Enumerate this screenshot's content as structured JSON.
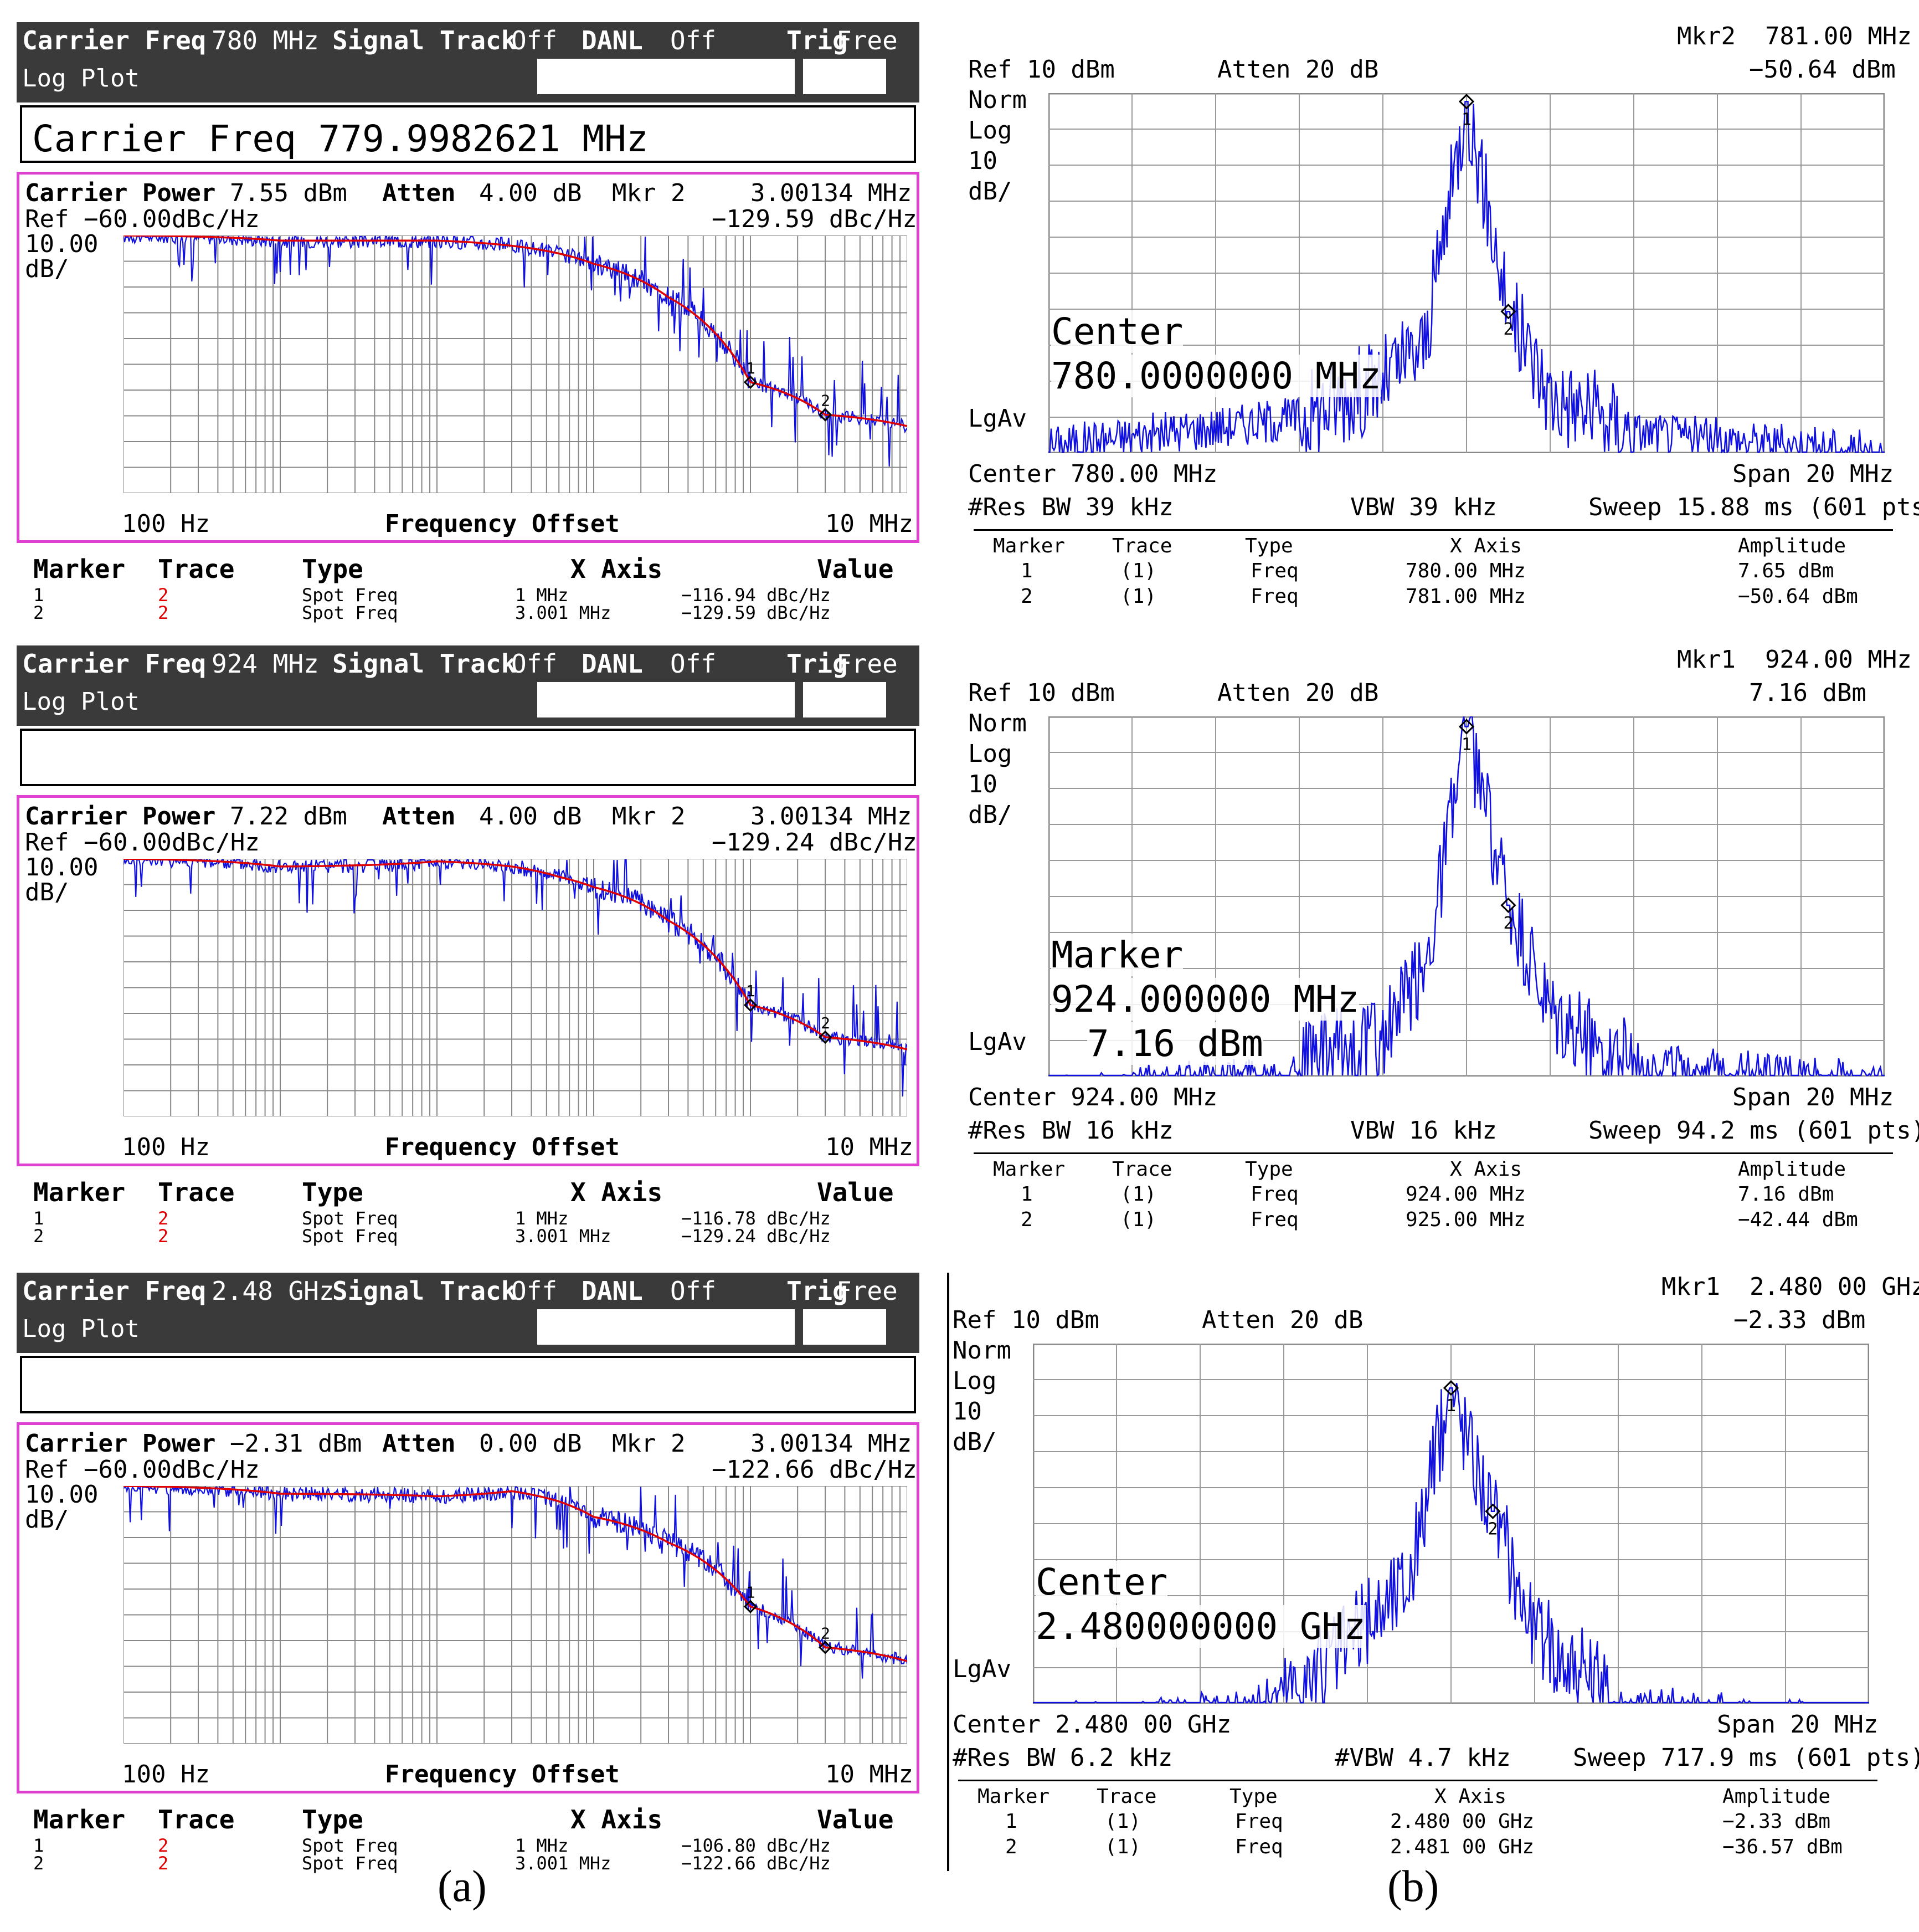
{
  "left_panels": [
    {
      "carrier_freq": "780 MHz",
      "signal_track": "Off",
      "danl": "Off",
      "trig": "Free",
      "freq_readout": "Carrier Freq 779.9982621 MHz",
      "carrier_power": "7.55 dBm",
      "atten": "4.00 dB",
      "mkr": "Mkr 2",
      "mkr_x": "3.00134 MHz",
      "mkr_y": "−129.59 dBc/Hz",
      "markers": [
        {
          "marker": "1",
          "trace": "2",
          "type": "Spot Freq",
          "x": "1 MHz",
          "value": "−116.94 dBc/Hz"
        },
        {
          "marker": "2",
          "trace": "2",
          "type": "Spot Freq",
          "x": "3.001 MHz",
          "value": "−129.59 dBc/Hz"
        }
      ]
    },
    {
      "carrier_freq": "924 MHz",
      "signal_track": "Off",
      "danl": "Off",
      "trig": "Free",
      "freq_readout": "",
      "carrier_power": "7.22 dBm",
      "atten": "4.00 dB",
      "mkr": "Mkr 2",
      "mkr_x": "3.00134 MHz",
      "mkr_y": "−129.24 dBc/Hz",
      "markers": [
        {
          "marker": "1",
          "trace": "2",
          "type": "Spot Freq",
          "x": "1 MHz",
          "value": "−116.78 dBc/Hz"
        },
        {
          "marker": "2",
          "trace": "2",
          "type": "Spot Freq",
          "x": "3.001 MHz",
          "value": "−129.24 dBc/Hz"
        }
      ]
    },
    {
      "carrier_freq": "2.48 GHz",
      "signal_track": "Off",
      "danl": "Off",
      "trig": "Free",
      "freq_readout": "",
      "carrier_power": "−2.31 dBm",
      "atten": "0.00 dB",
      "mkr": "Mkr 2",
      "mkr_x": "3.00134 MHz",
      "mkr_y": "−122.66 dBc/Hz",
      "markers": [
        {
          "marker": "1",
          "trace": "2",
          "type": "Spot Freq",
          "x": "1 MHz",
          "value": "−106.80 dBc/Hz"
        },
        {
          "marker": "2",
          "trace": "2",
          "type": "Spot Freq",
          "x": "3.001 MHz",
          "value": "−122.66 dBc/Hz"
        }
      ]
    }
  ],
  "left_labels": {
    "carrier_freq": "Carrier Freq",
    "signal_track": "Signal Track",
    "danl": "DANL",
    "trig": "Trig",
    "log_plot": "Log Plot",
    "carrier_power": "Carrier Power",
    "atten": "Atten",
    "ref": "Ref −60.00dBc/Hz",
    "scale1": "10.00",
    "scale2": "dB/",
    "x_start": "100 Hz",
    "x_label": "Frequency Offset",
    "x_end": "10 MHz",
    "col_marker": "Marker",
    "col_trace": "Trace",
    "col_type": "Type",
    "col_x": "X Axis",
    "col_value": "Value"
  },
  "right_panels": [
    {
      "mkr_top": "Mkr2  781.00 MHz",
      "ref": "Ref 10 dBm",
      "atten": "Atten 20 dB",
      "mkr_amp": "−50.64 dBm",
      "overlay1": "Center",
      "overlay2": "780.0000000 MHz",
      "overlay3": "",
      "center": "Center 780.00 MHz",
      "span": "Span 20 MHz",
      "rbw": "#Res BW 39 kHz",
      "vbw": "VBW 39 kHz",
      "sweep": "Sweep 15.88 ms (601 pts)",
      "markers": [
        {
          "marker": "1",
          "trace": "(1)",
          "type": "Freq",
          "x": "780.00 MHz",
          "amp": "7.65 dBm"
        },
        {
          "marker": "2",
          "trace": "(1)",
          "type": "Freq",
          "x": "781.00 MHz",
          "amp": "−50.64 dBm"
        }
      ]
    },
    {
      "mkr_top": "Mkr1  924.00 MHz",
      "ref": "Ref 10 dBm",
      "atten": "Atten 20 dB",
      "mkr_amp": "7.16 dBm",
      "overlay1": "Marker",
      "overlay2": "924.000000 MHz",
      "overlay3": "7.16 dBm",
      "center": "Center 924.00 MHz",
      "span": "Span 20 MHz",
      "rbw": "#Res BW 16 kHz",
      "vbw": "VBW 16 kHz",
      "sweep": "Sweep 94.2 ms (601 pts)",
      "markers": [
        {
          "marker": "1",
          "trace": "(1)",
          "type": "Freq",
          "x": "924.00 MHz",
          "amp": "7.16 dBm"
        },
        {
          "marker": "2",
          "trace": "(1)",
          "type": "Freq",
          "x": "925.00 MHz",
          "amp": "−42.44 dBm"
        }
      ]
    },
    {
      "mkr_top": "Mkr1  2.480 00 GHz",
      "ref": "Ref 10 dBm",
      "atten": "Atten 20 dB",
      "mkr_amp": "−2.33 dBm",
      "overlay1": "Center",
      "overlay2": "2.480000000 GHz",
      "overlay3": "",
      "center": "Center 2.480 00 GHz",
      "span": "Span 20 MHz",
      "rbw": "#Res BW 6.2 kHz",
      "vbw": "#VBW 4.7 kHz",
      "sweep": "Sweep 717.9 ms (601 pts)",
      "markers": [
        {
          "marker": "1",
          "trace": "(1)",
          "type": "Freq",
          "x": "2.480 00 GHz",
          "amp": "−2.33 dBm"
        },
        {
          "marker": "2",
          "trace": "(1)",
          "type": "Freq",
          "x": "2.481 00 GHz",
          "amp": "−36.57 dBm"
        }
      ]
    }
  ],
  "right_labels": {
    "norm": "Norm",
    "log": "Log",
    "ten": "10",
    "dbdiv": "dB/",
    "lgav": "LgAv",
    "col_marker": "Marker",
    "col_trace": "Trace",
    "col_type": "Type",
    "col_x": "X Axis",
    "col_amp": "Amplitude"
  },
  "captions": {
    "a": "(a)",
    "b": "(b)"
  },
  "colors": {
    "trace": "#1010e0",
    "avg": "#e00000",
    "border": "#e040d0"
  },
  "chart_data": [
    {
      "type": "line",
      "panel": "a-780MHz",
      "xlabel": "Frequency Offset",
      "x_scale": "log",
      "xlim": [
        "100 Hz",
        "10 MHz"
      ],
      "series": [
        {
          "name": "Trace 2",
          "points": [
            [
              100,
              -60
            ],
            [
              1000,
              -62
            ],
            [
              10000,
              -62
            ],
            [
              30000,
              -64
            ],
            [
              60000,
              -67
            ],
            [
              100000,
              -71
            ],
            [
              300000,
              -84
            ],
            [
              1000000,
              -116.94
            ],
            [
              3001340,
              -129.59
            ],
            [
              10000000,
              -134
            ]
          ]
        }
      ]
    },
    {
      "type": "line",
      "panel": "a-924MHz",
      "xlabel": "Frequency Offset",
      "x_scale": "log",
      "xlim": [
        "100 Hz",
        "10 MHz"
      ],
      "series": [
        {
          "name": "Trace 2",
          "points": [
            [
              100,
              -60
            ],
            [
              1000,
              -63
            ],
            [
              10000,
              -61
            ],
            [
              30000,
              -63
            ],
            [
              60000,
              -67
            ],
            [
              100000,
              -71
            ],
            [
              300000,
              -84
            ],
            [
              1000000,
              -116.78
            ],
            [
              3001340,
              -129.24
            ],
            [
              10000000,
              -134
            ]
          ]
        }
      ]
    },
    {
      "type": "line",
      "panel": "a-2.48GHz",
      "xlabel": "Frequency Offset",
      "x_scale": "log",
      "xlim": [
        "100 Hz",
        "10 MHz"
      ],
      "series": [
        {
          "name": "Trace 2",
          "points": [
            [
              100,
              -60
            ],
            [
              1000,
              -63
            ],
            [
              10000,
              -64
            ],
            [
              30000,
              -62
            ],
            [
              60000,
              -66
            ],
            [
              100000,
              -72
            ],
            [
              300000,
              -82
            ],
            [
              1000000,
              -106.8
            ],
            [
              3001340,
              -122.66
            ],
            [
              10000000,
              -128
            ]
          ]
        }
      ]
    },
    {
      "type": "line",
      "panel": "b-780MHz",
      "center": "780.00 MHz",
      "span": "20 MHz",
      "ref_dbm": 10,
      "scale_db_div": 10,
      "series": [
        {
          "name": "(1)",
          "points": [
            [
              -10,
              -88
            ],
            [
              -4,
              -80
            ],
            [
              -2,
              -70
            ],
            [
              -1,
              -60
            ],
            [
              0,
              7.65
            ],
            [
              1,
              -50.64
            ],
            [
              2,
              -74
            ],
            [
              4,
              -84
            ],
            [
              10,
              -90
            ]
          ]
        }
      ]
    },
    {
      "type": "line",
      "panel": "b-924MHz",
      "center": "924.00 MHz",
      "span": "20 MHz",
      "ref_dbm": 10,
      "scale_db_div": 10,
      "series": [
        {
          "name": "(1)",
          "points": [
            [
              -10,
              -95
            ],
            [
              -5,
              -90
            ],
            [
              -2,
              -80
            ],
            [
              -1,
              -60
            ],
            [
              0,
              7.16
            ],
            [
              1,
              -42.44
            ],
            [
              2,
              -75
            ],
            [
              4,
              -86
            ],
            [
              10,
              -92
            ]
          ]
        }
      ]
    },
    {
      "type": "line",
      "panel": "b-2.48GHz",
      "center": "2.480 00 GHz",
      "span": "20 MHz",
      "ref_dbm": 10,
      "scale_db_div": 10,
      "series": [
        {
          "name": "(1)",
          "points": [
            [
              -10,
              -96
            ],
            [
              -5,
              -92
            ],
            [
              -3,
              -80
            ],
            [
              -1,
              -55
            ],
            [
              0,
              -2.33
            ],
            [
              1,
              -36.57
            ],
            [
              2,
              -70
            ],
            [
              4,
              -90
            ],
            [
              10,
              -96
            ]
          ]
        }
      ]
    }
  ]
}
